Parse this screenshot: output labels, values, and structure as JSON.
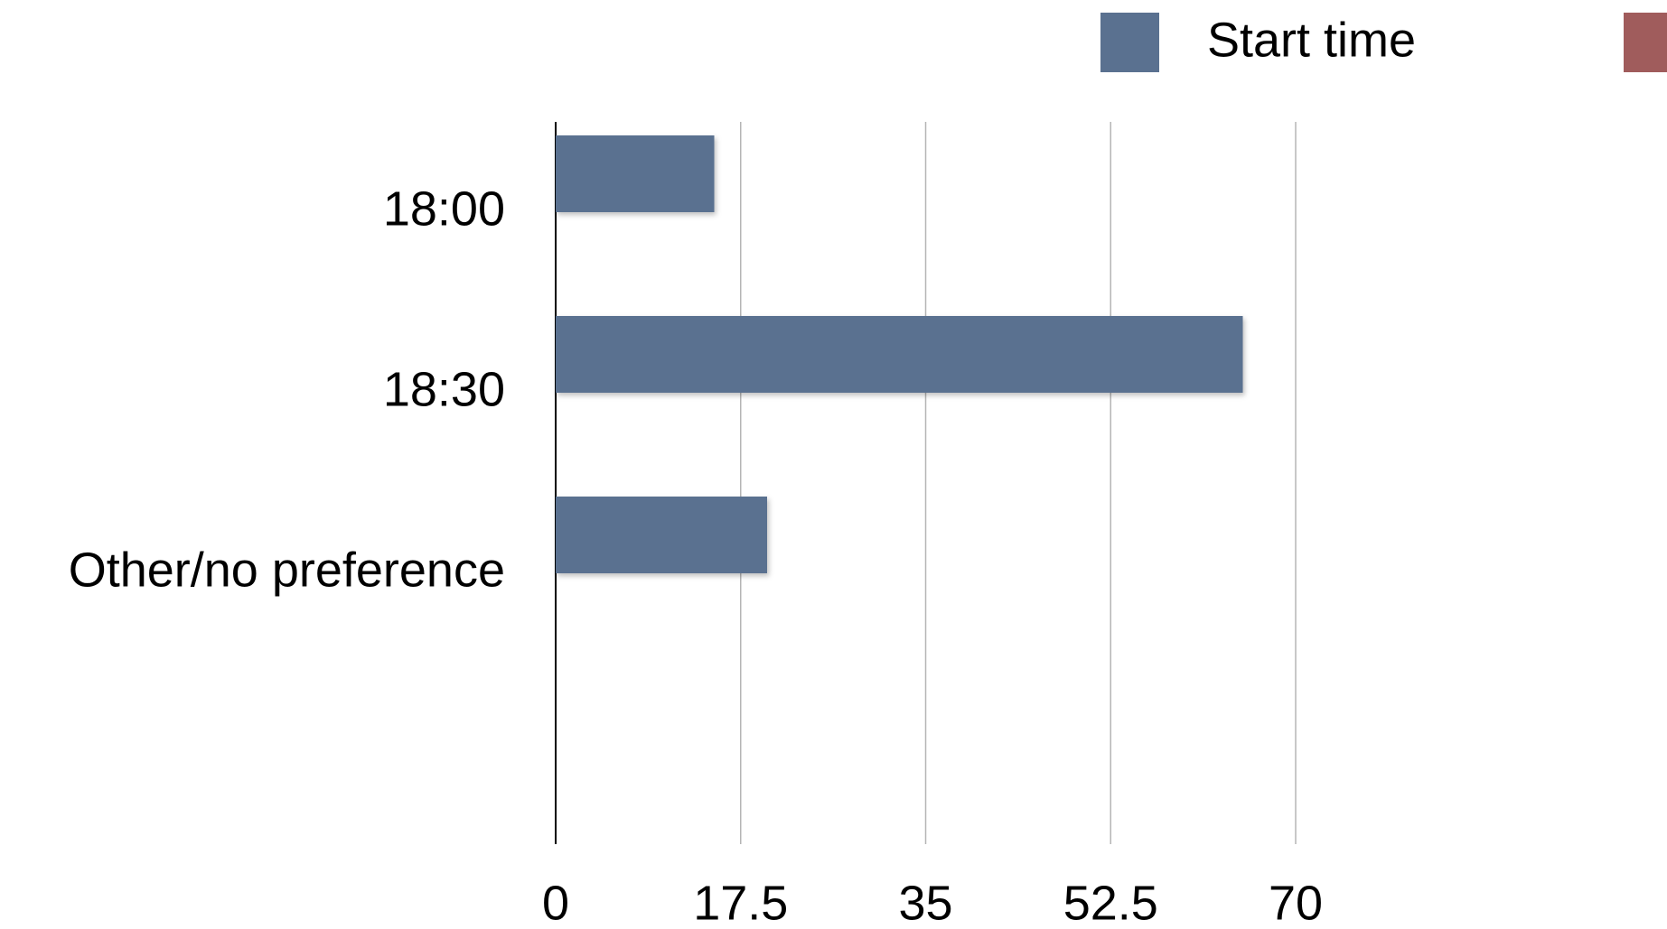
{
  "chart_data": {
    "type": "bar",
    "orientation": "horizontal",
    "categories": [
      "18:00",
      "18:30",
      "Other/no preference",
      null
    ],
    "series": [
      {
        "name": "Start time",
        "color": "#5a7190",
        "values": [
          15,
          65,
          20,
          null
        ]
      }
    ],
    "xlim": [
      0,
      70
    ],
    "xticks": [
      0,
      17.5,
      35,
      52.5,
      70
    ],
    "grid": true,
    "legend": "top-right"
  }
}
